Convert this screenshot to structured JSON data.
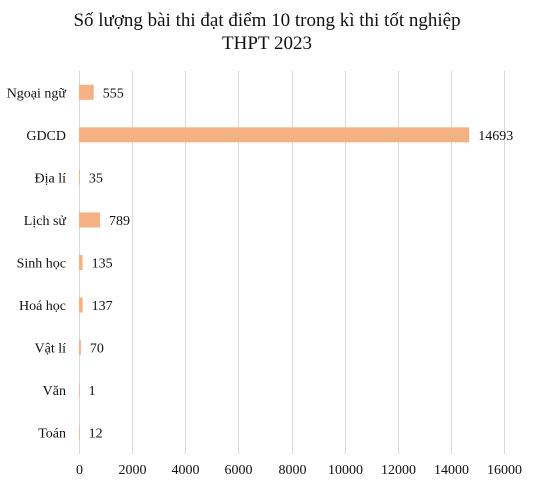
{
  "chart_data": {
    "type": "bar",
    "orientation": "horizontal",
    "title_lines": [
      "Số lượng bài thi đạt điểm 10 trong kì thi tốt nghiệp",
      "THPT 2023"
    ],
    "categories": [
      "Ngoại ngữ",
      "GDCD",
      "Địa lí",
      "Lịch sử",
      "Sinh học",
      "Hoá học",
      "Vật lí",
      "Văn",
      "Toán"
    ],
    "values": [
      555,
      14693,
      35,
      789,
      135,
      137,
      70,
      1,
      12
    ],
    "value_labels": [
      "555",
      "14693",
      "35",
      "789",
      "135",
      "137",
      "70",
      "1",
      "12"
    ],
    "xlim": [
      0,
      16000
    ],
    "x_ticks": [
      0,
      2000,
      4000,
      6000,
      8000,
      10000,
      12000,
      14000,
      16000
    ],
    "x_tick_labels": [
      "0",
      "2000",
      "4000",
      "6000",
      "8000",
      "10000",
      "12000",
      "14000",
      "16000"
    ],
    "grid": "vertical",
    "bar_color": "#f4b183"
  }
}
